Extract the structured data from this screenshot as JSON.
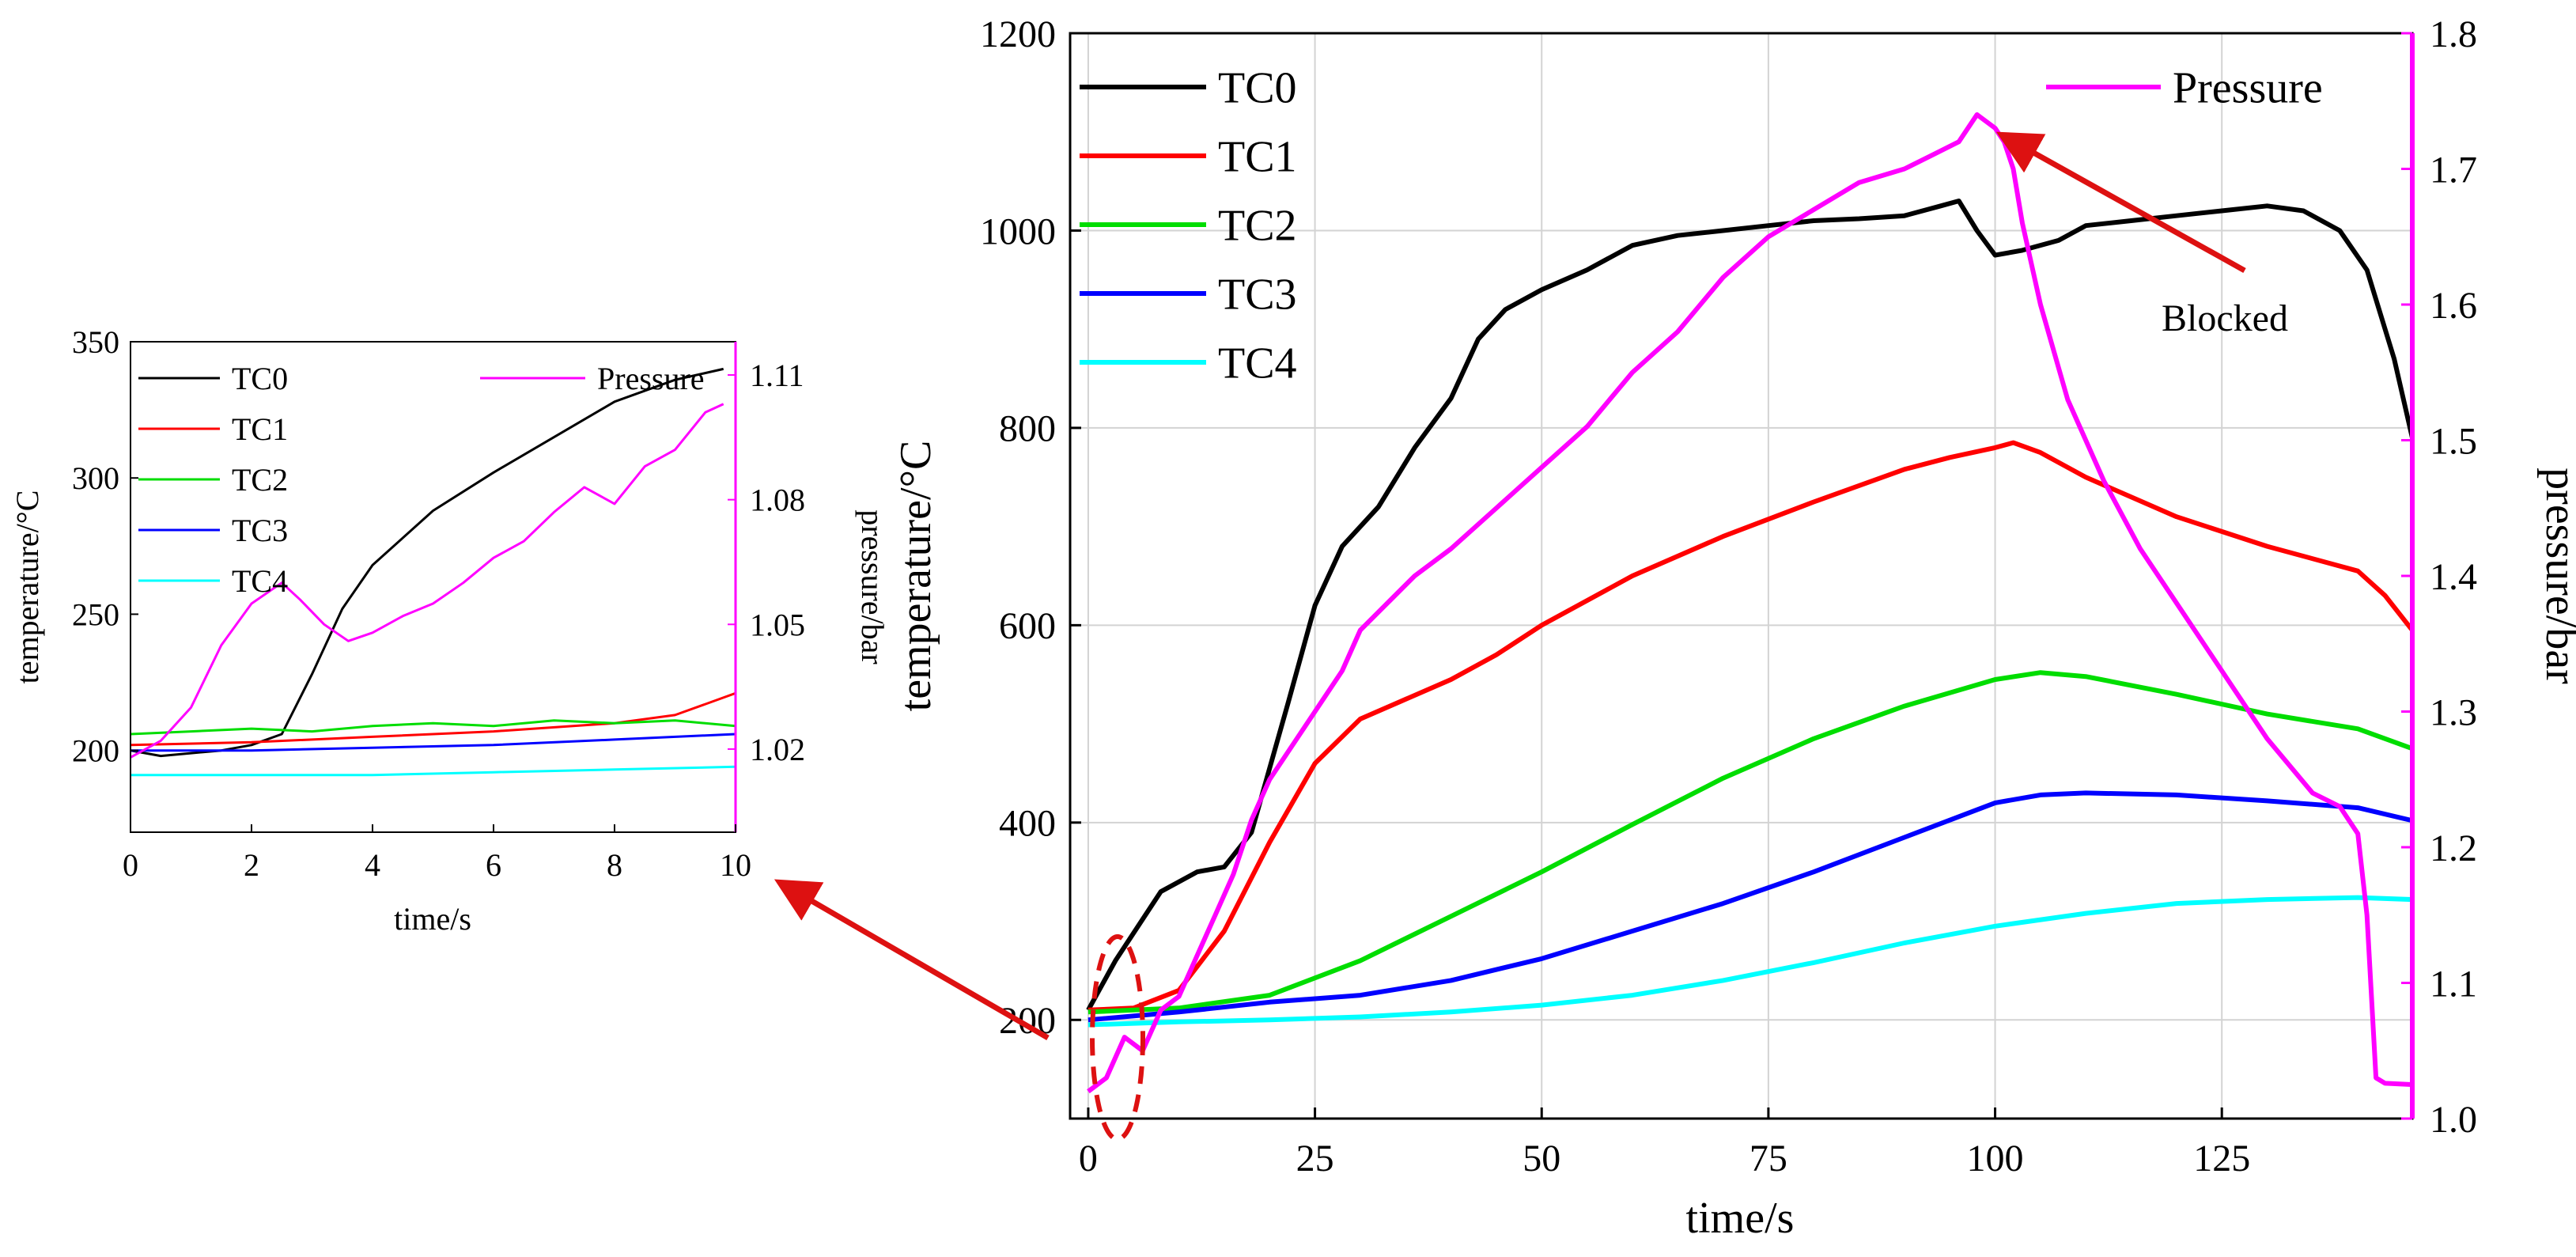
{
  "chart_data": [
    {
      "id": "inset",
      "type": "line",
      "xlabel": "time/s",
      "ylabel": "temperature/°C",
      "y2label": "pressure/bar",
      "xlim": [
        0,
        10
      ],
      "ylim": [
        170,
        350
      ],
      "y2lim": [
        1.0,
        1.118
      ],
      "xticks": [
        0,
        2,
        4,
        6,
        8,
        10
      ],
      "xtick_labels": [
        "0",
        "2",
        "4",
        "6",
        "8",
        "10"
      ],
      "yticks": [
        200,
        250,
        300,
        350
      ],
      "ytick_labels": [
        "200",
        "250",
        "300",
        "350"
      ],
      "y2ticks": [
        1.02,
        1.05,
        1.08,
        1.11
      ],
      "y2tick_labels": [
        "1.02",
        "1.05",
        "1.08",
        "1.11"
      ],
      "grid": false,
      "legend_position": "top",
      "series": [
        {
          "name": "TC0",
          "axis": "left",
          "color": "#000000",
          "x": [
            0,
            0.5,
            1,
            1.5,
            2,
            2.5,
            3,
            3.5,
            4,
            5,
            6,
            7,
            8,
            9,
            9.8
          ],
          "values": [
            200,
            198,
            199,
            200,
            202,
            206,
            228,
            252,
            268,
            288,
            302,
            315,
            328,
            336,
            340
          ]
        },
        {
          "name": "TC1",
          "axis": "left",
          "color": "#ff0000",
          "x": [
            0,
            2,
            4,
            6,
            8,
            9,
            9.5,
            10
          ],
          "values": [
            202,
            203,
            205,
            207,
            210,
            213,
            217,
            221
          ]
        },
        {
          "name": "TC2",
          "axis": "left",
          "color": "#00dd00",
          "x": [
            0,
            1,
            2,
            3,
            4,
            5,
            6,
            7,
            8,
            9,
            10
          ],
          "values": [
            206,
            207,
            208,
            207,
            209,
            210,
            209,
            211,
            210,
            211,
            209
          ]
        },
        {
          "name": "TC3",
          "axis": "left",
          "color": "#0000ff",
          "x": [
            0,
            2,
            4,
            6,
            8,
            10
          ],
          "values": [
            200,
            200,
            201,
            202,
            204,
            206
          ]
        },
        {
          "name": "TC4",
          "axis": "left",
          "color": "#00ffff",
          "x": [
            0,
            2,
            4,
            6,
            8,
            10
          ],
          "values": [
            191,
            191,
            191,
            192,
            193,
            194
          ]
        },
        {
          "name": "Pressure",
          "axis": "right",
          "color": "#ff00ff",
          "x": [
            0,
            0.5,
            1,
            1.5,
            2,
            2.5,
            2.8,
            3.2,
            3.6,
            4,
            4.5,
            5,
            5.5,
            6,
            6.5,
            7,
            7.5,
            8,
            8.5,
            9,
            9.5,
            9.8
          ],
          "values": [
            1.018,
            1.022,
            1.03,
            1.045,
            1.055,
            1.06,
            1.056,
            1.05,
            1.046,
            1.048,
            1.052,
            1.055,
            1.06,
            1.066,
            1.07,
            1.077,
            1.083,
            1.079,
            1.088,
            1.092,
            1.101,
            1.103
          ]
        }
      ]
    },
    {
      "id": "main",
      "type": "line",
      "xlabel": "time/s",
      "ylabel": "temperature/°C",
      "y2label": "pressure/bar",
      "xlim": [
        -2,
        146
      ],
      "ylim": [
        100,
        1200
      ],
      "y2lim": [
        1.0,
        1.8
      ],
      "xticks": [
        0,
        25,
        50,
        75,
        100,
        125
      ],
      "xtick_labels": [
        "0",
        "25",
        "50",
        "75",
        "100",
        "125"
      ],
      "yticks": [
        200,
        400,
        600,
        800,
        1000,
        1200
      ],
      "ytick_labels": [
        "200",
        "400",
        "600",
        "800",
        "1000",
        "1200"
      ],
      "y2ticks": [
        1.0,
        1.1,
        1.2,
        1.3,
        1.4,
        1.5,
        1.6,
        1.7,
        1.8
      ],
      "y2tick_labels": [
        "1.0",
        "1.1",
        "1.2",
        "1.3",
        "1.4",
        "1.5",
        "1.6",
        "1.7",
        "1.8"
      ],
      "grid": true,
      "legend_position": "top-left and top-right",
      "series": [
        {
          "name": "TC0",
          "axis": "left",
          "color": "#000000",
          "x": [
            0,
            3,
            8,
            12,
            15,
            18,
            22,
            25,
            28,
            32,
            36,
            40,
            43,
            46,
            50,
            55,
            60,
            65,
            70,
            75,
            80,
            85,
            90,
            94,
            96,
            98,
            100,
            103,
            107,
            110,
            115,
            120,
            125,
            130,
            134,
            138,
            141,
            144,
            146
          ],
          "values": [
            210,
            260,
            330,
            350,
            355,
            390,
            520,
            620,
            680,
            720,
            780,
            830,
            890,
            920,
            940,
            960,
            985,
            995,
            1000,
            1005,
            1010,
            1012,
            1015,
            1025,
            1030,
            1000,
            975,
            980,
            990,
            1005,
            1010,
            1015,
            1020,
            1025,
            1020,
            1000,
            960,
            870,
            790
          ]
        },
        {
          "name": "TC1",
          "axis": "left",
          "color": "#ff0000",
          "x": [
            0,
            5,
            10,
            15,
            20,
            25,
            30,
            35,
            40,
            45,
            50,
            60,
            70,
            80,
            90,
            95,
            100,
            102,
            105,
            110,
            120,
            130,
            140,
            143,
            146
          ],
          "values": [
            210,
            212,
            230,
            290,
            380,
            460,
            505,
            525,
            545,
            570,
            600,
            650,
            690,
            725,
            758,
            770,
            780,
            785,
            775,
            750,
            710,
            680,
            655,
            630,
            595
          ]
        },
        {
          "name": "TC2",
          "axis": "left",
          "color": "#00dd00",
          "x": [
            0,
            10,
            20,
            30,
            40,
            50,
            60,
            70,
            80,
            90,
            100,
            105,
            110,
            120,
            130,
            140,
            146
          ],
          "values": [
            208,
            212,
            225,
            260,
            305,
            350,
            398,
            445,
            485,
            518,
            545,
            552,
            548,
            530,
            510,
            495,
            475
          ]
        },
        {
          "name": "TC3",
          "axis": "left",
          "color": "#0000ff",
          "x": [
            0,
            10,
            20,
            30,
            40,
            50,
            60,
            70,
            80,
            90,
            100,
            105,
            110,
            120,
            130,
            140,
            146
          ],
          "values": [
            200,
            208,
            218,
            225,
            240,
            262,
            290,
            318,
            350,
            385,
            420,
            428,
            430,
            428,
            422,
            415,
            402
          ]
        },
        {
          "name": "TC4",
          "axis": "left",
          "color": "#00ffff",
          "x": [
            0,
            10,
            20,
            30,
            40,
            50,
            60,
            70,
            80,
            90,
            100,
            110,
            120,
            130,
            140,
            146
          ],
          "values": [
            195,
            198,
            200,
            203,
            208,
            215,
            225,
            240,
            258,
            278,
            295,
            308,
            318,
            322,
            324,
            322
          ]
        },
        {
          "name": "Pressure",
          "axis": "right",
          "color": "#ff00ff",
          "x": [
            0,
            2,
            4,
            6,
            8,
            10,
            12,
            14,
            16,
            18,
            20,
            22,
            25,
            28,
            30,
            33,
            36,
            40,
            45,
            50,
            55,
            60,
            65,
            70,
            75,
            80,
            85,
            90,
            93,
            96,
            98,
            100,
            101,
            102,
            103,
            105,
            108,
            112,
            116,
            120,
            125,
            130,
            135,
            138,
            140,
            141,
            142,
            143,
            146
          ],
          "values": [
            1.02,
            1.03,
            1.06,
            1.05,
            1.08,
            1.09,
            1.12,
            1.15,
            1.18,
            1.22,
            1.25,
            1.27,
            1.3,
            1.33,
            1.36,
            1.38,
            1.4,
            1.42,
            1.45,
            1.48,
            1.51,
            1.55,
            1.58,
            1.62,
            1.65,
            1.67,
            1.69,
            1.7,
            1.71,
            1.72,
            1.74,
            1.73,
            1.72,
            1.7,
            1.66,
            1.6,
            1.53,
            1.47,
            1.42,
            1.38,
            1.33,
            1.28,
            1.24,
            1.23,
            1.21,
            1.15,
            1.03,
            1.026,
            1.025
          ]
        }
      ]
    }
  ],
  "annotations": {
    "blocked_label": "Blocked"
  }
}
